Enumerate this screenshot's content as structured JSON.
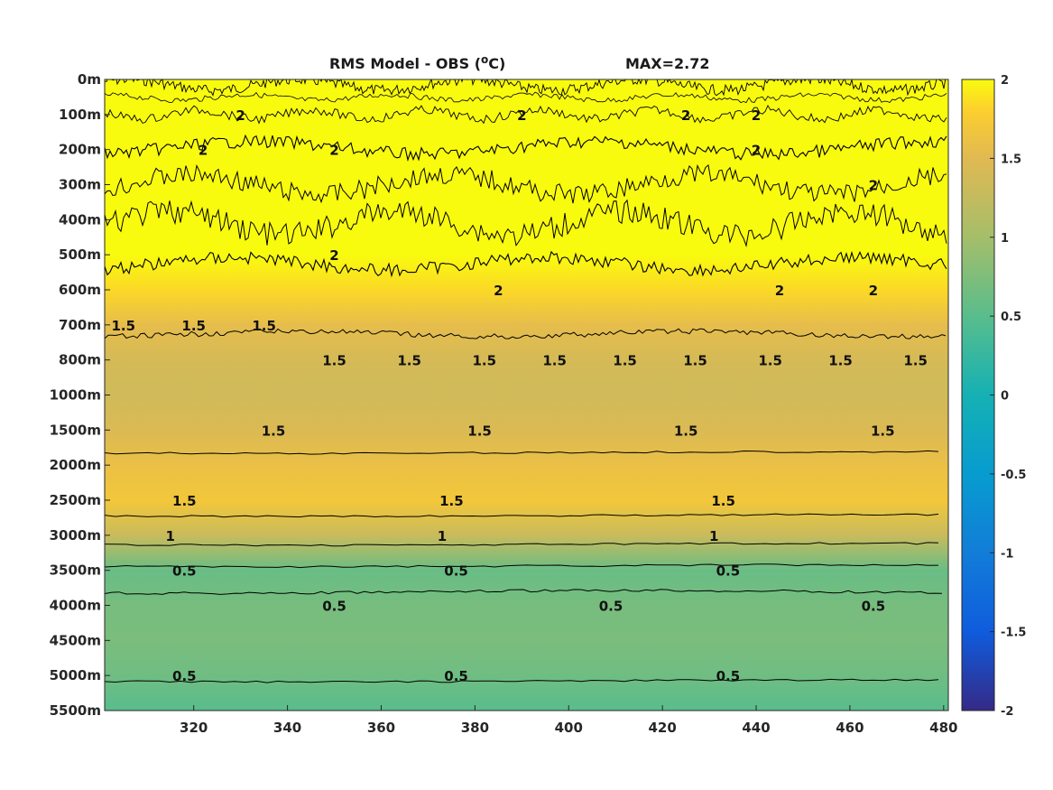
{
  "chart_data": {
    "type": "heatmap",
    "title": "RMS Model - OBS (",
    "title_unit_sup": "o",
    "title_unit_tail": "C)",
    "max_label": "MAX=2.72",
    "x_ticks": [
      320,
      340,
      360,
      380,
      400,
      420,
      440,
      460,
      480
    ],
    "xlim": [
      301,
      481
    ],
    "y_tick_labels": [
      "0m",
      "100m",
      "200m",
      "300m",
      "400m",
      "500m",
      "600m",
      "700m",
      "800m",
      "1000m",
      "1500m",
      "2000m",
      "2500m",
      "3000m",
      "3500m",
      "4000m",
      "4500m",
      "5000m",
      "5500m"
    ],
    "colorbar": {
      "ticks": [
        "2",
        "1.5",
        "1",
        "0.5",
        "0",
        "-0.5",
        "-1",
        "-1.5",
        "-2"
      ],
      "clim": [
        -2,
        2
      ],
      "colormap": "parula"
    },
    "depth_profile": [
      {
        "depth": "0m",
        "value": 2.0
      },
      {
        "depth": "100m",
        "value": 2.0
      },
      {
        "depth": "200m",
        "value": 2.0
      },
      {
        "depth": "300m",
        "value": 2.0
      },
      {
        "depth": "400m",
        "value": 2.0
      },
      {
        "depth": "500m",
        "value": 2.0
      },
      {
        "depth": "600m",
        "value": 1.85
      },
      {
        "depth": "700m",
        "value": 1.55
      },
      {
        "depth": "800m",
        "value": 1.4
      },
      {
        "depth": "1000m",
        "value": 1.35
      },
      {
        "depth": "1500m",
        "value": 1.45
      },
      {
        "depth": "2000m",
        "value": 1.6
      },
      {
        "depth": "2500m",
        "value": 1.7
      },
      {
        "depth": "3000m",
        "value": 1.3
      },
      {
        "depth": "3500m",
        "value": 0.6
      },
      {
        "depth": "4000m",
        "value": 0.7
      },
      {
        "depth": "4500m",
        "value": 0.72
      },
      {
        "depth": "5000m",
        "value": 0.65
      },
      {
        "depth": "5500m",
        "value": 0.5
      }
    ],
    "contour_labels": [
      {
        "text": "2",
        "x": 330,
        "depth": "100m"
      },
      {
        "text": "2",
        "x": 390,
        "depth": "100m"
      },
      {
        "text": "2",
        "x": 425,
        "depth": "100m"
      },
      {
        "text": "2",
        "x": 440,
        "depth": "100m"
      },
      {
        "text": "2",
        "x": 322,
        "depth": "200m"
      },
      {
        "text": "2",
        "x": 350,
        "depth": "200m"
      },
      {
        "text": "2",
        "x": 440,
        "depth": "200m"
      },
      {
        "text": "2",
        "x": 465,
        "depth": "300m"
      },
      {
        "text": "2",
        "x": 350,
        "depth": "500m"
      },
      {
        "text": "2",
        "x": 385,
        "depth": "600m"
      },
      {
        "text": "2",
        "x": 445,
        "depth": "600m"
      },
      {
        "text": "2",
        "x": 465,
        "depth": "600m"
      },
      {
        "text": "1.5",
        "x": 305,
        "depth": "700m"
      },
      {
        "text": "1.5",
        "x": 320,
        "depth": "700m"
      },
      {
        "text": "1.5",
        "x": 335,
        "depth": "700m"
      },
      {
        "text": "1.5",
        "x": 350,
        "depth": "800m"
      },
      {
        "text": "1.5",
        "x": 366,
        "depth": "800m"
      },
      {
        "text": "1.5",
        "x": 382,
        "depth": "800m"
      },
      {
        "text": "1.5",
        "x": 397,
        "depth": "800m"
      },
      {
        "text": "1.5",
        "x": 412,
        "depth": "800m"
      },
      {
        "text": "1.5",
        "x": 427,
        "depth": "800m"
      },
      {
        "text": "1.5",
        "x": 443,
        "depth": "800m"
      },
      {
        "text": "1.5",
        "x": 458,
        "depth": "800m"
      },
      {
        "text": "1.5",
        "x": 474,
        "depth": "800m"
      },
      {
        "text": "1.5",
        "x": 337,
        "depth": "1500m"
      },
      {
        "text": "1.5",
        "x": 381,
        "depth": "1500m"
      },
      {
        "text": "1.5",
        "x": 425,
        "depth": "1500m"
      },
      {
        "text": "1.5",
        "x": 467,
        "depth": "1500m"
      },
      {
        "text": "1.5",
        "x": 318,
        "depth": "2500m"
      },
      {
        "text": "1.5",
        "x": 375,
        "depth": "2500m"
      },
      {
        "text": "1.5",
        "x": 433,
        "depth": "2500m"
      },
      {
        "text": "1",
        "x": 315,
        "depth": "3000m"
      },
      {
        "text": "1",
        "x": 373,
        "depth": "3000m"
      },
      {
        "text": "1",
        "x": 431,
        "depth": "3000m"
      },
      {
        "text": "0.5",
        "x": 318,
        "depth": "3500m"
      },
      {
        "text": "0.5",
        "x": 376,
        "depth": "3500m"
      },
      {
        "text": "0.5",
        "x": 434,
        "depth": "3500m"
      },
      {
        "text": "0.5",
        "x": 350,
        "depth": "4000m"
      },
      {
        "text": "0.5",
        "x": 409,
        "depth": "4000m"
      },
      {
        "text": "0.5",
        "x": 465,
        "depth": "4000m"
      },
      {
        "text": "0.5",
        "x": 318,
        "depth": "5000m"
      },
      {
        "text": "0.5",
        "x": 376,
        "depth": "5000m"
      },
      {
        "text": "0.5",
        "x": 434,
        "depth": "5000m"
      }
    ]
  }
}
